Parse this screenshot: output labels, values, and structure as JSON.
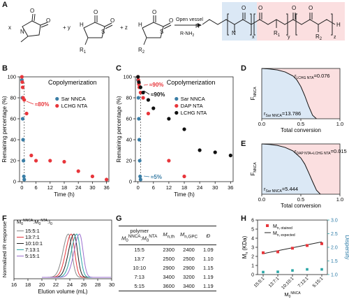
{
  "panel_letters": [
    "A",
    "B",
    "C",
    "D",
    "E",
    "F",
    "G",
    "H"
  ],
  "scheme": {
    "coef_x": "x",
    "coef_y": "+ y",
    "coef_z": "+ z",
    "r1": "R",
    "r1_sub": "1",
    "r2": "R",
    "r2_sub": "2",
    "arrow_top": "Open vessel",
    "arrow_bottom": "R-NH",
    "arrow_bottom_sub": "2",
    "product_rn": "R",
    "product_h": "H",
    "x": "x",
    "y": "y",
    "z": "z",
    "o": "O",
    "n": "N",
    "s": "S",
    "colors": {
      "blue_box": "#dbe8f5",
      "red_box": "#fbdfe0"
    }
  },
  "chart_data": [
    {
      "id": "B",
      "type": "scatter",
      "title": "Copolymerization",
      "xlabel": "Time (h)",
      "ylabel": "Remaining percentage (%)",
      "xlim": [
        -1,
        37
      ],
      "ylim": [
        0,
        100
      ],
      "xticks": [
        0,
        6,
        12,
        18,
        24,
        30,
        36
      ],
      "yticks": [
        0,
        20,
        40,
        60,
        80,
        100
      ],
      "legend": "right",
      "series": [
        {
          "name": "Sar NNCA",
          "color": "#3b7ea6",
          "x": [
            0,
            0.17,
            0.33,
            0.5,
            0.67,
            0.83,
            1.0
          ],
          "y": [
            97,
            80,
            60,
            40,
            20,
            5,
            2
          ]
        },
        {
          "name": "LCHG NTA",
          "color": "#e8363b",
          "x": [
            0,
            0.17,
            0.33,
            0.5,
            1,
            2,
            4,
            6,
            12,
            18,
            24,
            30,
            36
          ],
          "y": [
            100,
            95,
            90,
            80,
            78,
            65,
            25,
            20,
            20,
            19,
            10,
            5,
            2
          ]
        }
      ],
      "annotations": [
        {
          "text": "≈80%",
          "color": "#e8363b"
        }
      ]
    },
    {
      "id": "C",
      "type": "scatter",
      "title": "Copolymerization",
      "xlabel": "Time (h)",
      "ylabel": "Remaining percentage (%)",
      "xlim": [
        -1,
        37
      ],
      "ylim": [
        0,
        100
      ],
      "xticks": [
        0,
        6,
        12,
        18,
        24,
        30,
        36
      ],
      "yticks": [
        0,
        20,
        40,
        60,
        80,
        100
      ],
      "legend": "right",
      "series": [
        {
          "name": "Sar NNCA",
          "color": "#3b7ea6",
          "x": [
            0,
            0.17,
            0.33,
            0.5,
            0.67,
            0.83,
            1.0
          ],
          "y": [
            97,
            80,
            60,
            40,
            20,
            5,
            2
          ]
        },
        {
          "name": "DAP NTA",
          "color": "#e8363b",
          "x": [
            0,
            0.17,
            0.33,
            0.5,
            1,
            2,
            4,
            12,
            18
          ],
          "y": [
            100,
            97,
            93,
            90,
            85,
            80,
            65,
            20,
            5
          ]
        },
        {
          "name": "LCHG NTA",
          "color": "#111111",
          "x": [
            0,
            0.33,
            1,
            2,
            4,
            6,
            12,
            18,
            24,
            30,
            36
          ],
          "y": [
            100,
            95,
            90,
            85,
            78,
            70,
            60,
            50,
            30,
            28,
            25
          ]
        }
      ],
      "annotations": [
        {
          "text": "≈90%",
          "color": "#e8363b"
        },
        {
          "text": "≈90%",
          "color": "#111111"
        },
        {
          "text": "≈5%",
          "color": "#3b7ea6"
        }
      ]
    },
    {
      "id": "D",
      "type": "area",
      "xlabel": "Total conversion",
      "ylabel": "F",
      "ylabel_sub": "NNCA",
      "xlim": [
        0,
        1
      ],
      "ylim": [
        0,
        1
      ],
      "xticks": [
        0,
        0.5,
        1.0
      ],
      "yticks": [],
      "r_top": "r",
      "r_top_sub": "LCHG NTA",
      "r_top_val": "=0.076",
      "r_bottom": "r",
      "r_bottom_sub": "Sar NNCA",
      "r_bottom_val": "=13.786",
      "colors": {
        "upper": "#fbdfe0",
        "lower": "#dbe8f5"
      },
      "curve_x": [
        0,
        0.1,
        0.2,
        0.3,
        0.4,
        0.45,
        0.5,
        0.55,
        0.6,
        0.65,
        0.7
      ],
      "curve_y": [
        1,
        0.99,
        0.97,
        0.93,
        0.85,
        0.77,
        0.64,
        0.46,
        0.25,
        0.07,
        0
      ]
    },
    {
      "id": "E",
      "type": "area",
      "xlabel": "Total conversion",
      "ylabel": "F",
      "ylabel_sub": "NNCA",
      "xlim": [
        0,
        1
      ],
      "ylim": [
        0,
        1
      ],
      "xticks": [
        0,
        0.5,
        1.0
      ],
      "yticks": [],
      "r_top": "r",
      "r_top_sub": "DAP NTA+LCHG NTA",
      "r_top_val": "=0.015",
      "r_bottom": "r",
      "r_bottom_sub": "Sar NNCA",
      "r_bottom_val": "=5.444",
      "colors": {
        "upper": "#fbdfe0",
        "lower": "#dbe8f5"
      },
      "curve_x": [
        0,
        0.1,
        0.2,
        0.3,
        0.4,
        0.5,
        0.55,
        0.6,
        0.65,
        0.7,
        0.75
      ],
      "curve_y": [
        1,
        0.99,
        0.97,
        0.93,
        0.86,
        0.72,
        0.6,
        0.43,
        0.25,
        0.08,
        0
      ]
    },
    {
      "id": "F",
      "type": "line",
      "xlabel": "Elution volume (mL)",
      "ylabel": "Normalized IR response",
      "xlim": [
        16,
        30
      ],
      "xticks": [
        16,
        18,
        20,
        22,
        24,
        26,
        28,
        30
      ],
      "legend_title": "M",
      "legend_title_sup1": "NNCA",
      "legend_title_sup2": "NTA",
      "legend_title_sub": "0",
      "legend_title_sep1": ":M",
      "legend_title_sep2": ":I",
      "legend_title_sub3": "0",
      "series": [
        {
          "name": "15:5:1",
          "color": "#888888",
          "peak": 23.8
        },
        {
          "name": "13:7:1",
          "color": "#e8363b",
          "peak": 24.2
        },
        {
          "name": "10:10:1",
          "color": "#222222",
          "peak": 24.6
        },
        {
          "name": "7:13:1",
          "color": "#2aa6a6",
          "peak": 25.0
        },
        {
          "name": "5:15:1",
          "color": "#9b6fd0",
          "peak": 25.4
        }
      ]
    },
    {
      "id": "H",
      "type": "scatter",
      "xlabel": "M",
      "xlabel_sub": "0",
      "xlabel_sup": "NNCA",
      "ylabel": "M",
      "ylabel_sub": "n",
      "ylabel_unit": "(KDa)",
      "y2label": "Dispersity",
      "ylim": [
        0,
        6
      ],
      "y2lim": [
        1.0,
        3.0
      ],
      "yticks": [
        0,
        1,
        2,
        3,
        4,
        5,
        6
      ],
      "y2ticks": [
        1.0,
        1.5,
        2.0,
        2.5,
        3.0
      ],
      "categories": [
        "15:5:1",
        "13:7:1",
        "10:10:1",
        "7:13:1",
        "5:15:1"
      ],
      "series": [
        {
          "name": "M",
          "name_sub": "n, otained",
          "color": "#e8363b",
          "values": [
            2.4,
            2.5,
            2.9,
            3.2,
            3.4
          ]
        },
        {
          "name": "M",
          "name_sub": "n, expected",
          "color": "#222222",
          "values": [
            2.3,
            2.5,
            2.9,
            3.4,
            3.6
          ]
        },
        {
          "name": "Dispersity",
          "color": "#2aa6a6",
          "values": [
            1.09,
            1.1,
            1.15,
            1.19,
            1.19
          ]
        }
      ]
    }
  ],
  "table": {
    "headers": {
      "polymer": "polymer",
      "ratio": "M",
      "ratio_sub": "0",
      "ratio_sup": "NNCA",
      "ratio_sup2": "NTA",
      "mth": "M",
      "mth_sub": "n,th",
      "mgpc": "M",
      "mgpc_sub": "n,GPC",
      "d": "Đ"
    },
    "rows": [
      [
        "15:5",
        "2300",
        "2400",
        "1.09"
      ],
      [
        "13:7",
        "2500",
        "2500",
        "1.10"
      ],
      [
        "10:10",
        "2900",
        "2900",
        "1.15"
      ],
      [
        "7:13",
        "3400",
        "3200",
        "1.19"
      ],
      [
        "5:15",
        "3600",
        "3400",
        "1.19"
      ]
    ]
  }
}
